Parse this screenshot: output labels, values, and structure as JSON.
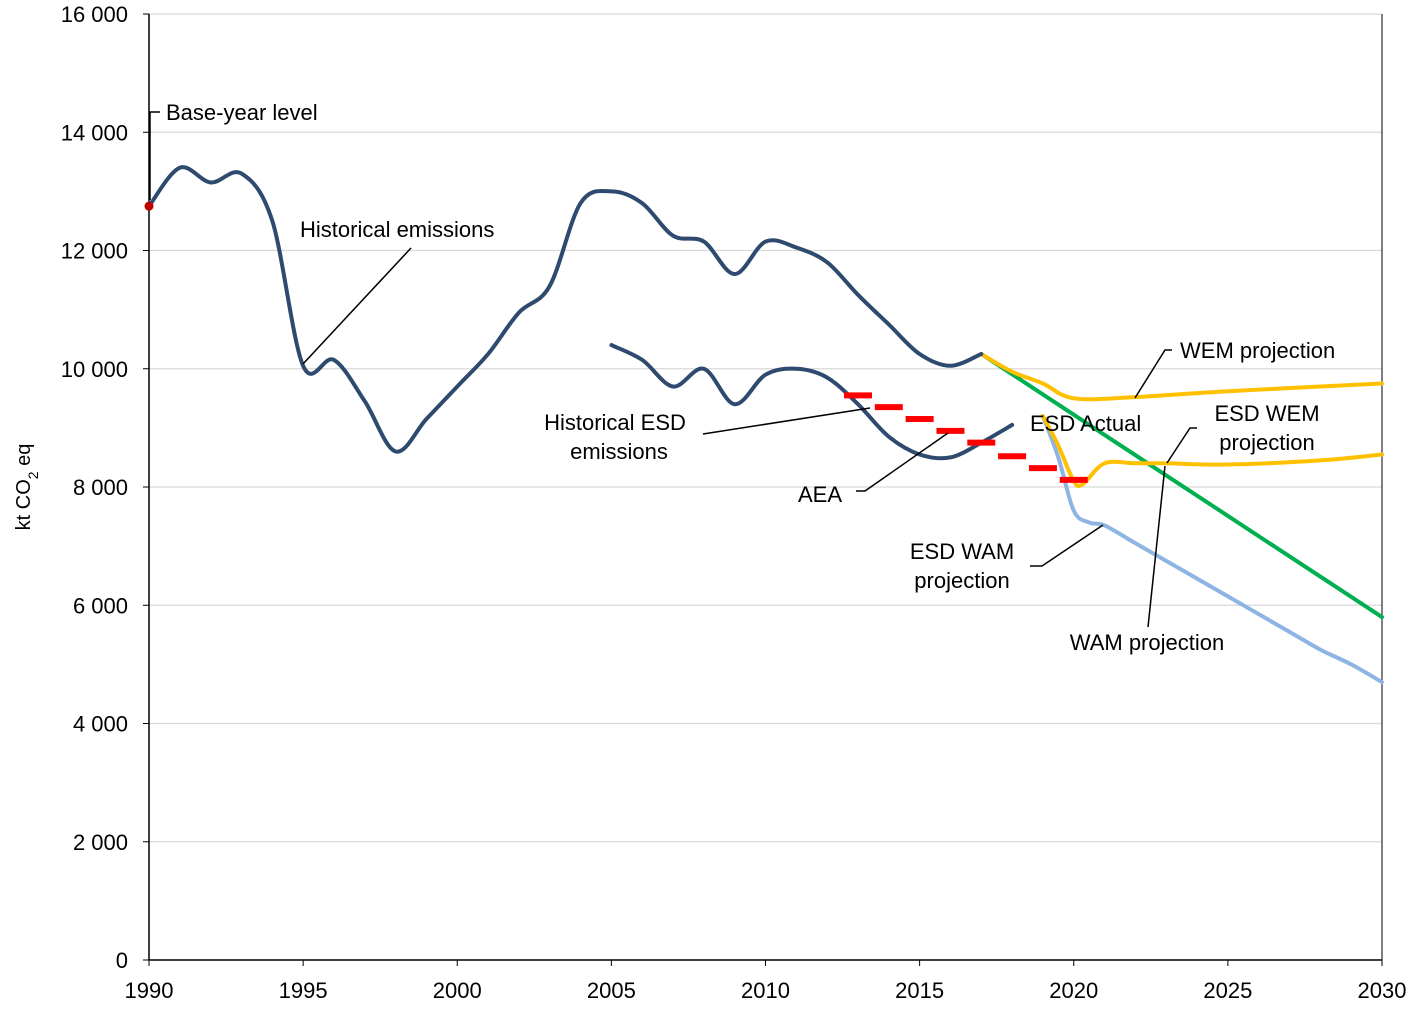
{
  "chart_data": {
    "type": "line",
    "title": "",
    "xlabel": "",
    "ylabel": "kt CO₂ eq",
    "xlim": [
      1990,
      2030
    ],
    "ylim": [
      0,
      16000
    ],
    "x_ticks": [
      "1990",
      "1995",
      "2000",
      "2005",
      "2010",
      "2015",
      "2020",
      "2025",
      "2030"
    ],
    "y_ticks": [
      "0",
      "2 000",
      "4 000",
      "6 000",
      "8 000",
      "10 000",
      "12 000",
      "14 000",
      "16 000"
    ],
    "grid": "horizontal",
    "colors": {
      "historical": "#2e4a6f",
      "wem": "#ffc000",
      "wam": "#8db4e2",
      "esd_actual": "#00b050",
      "aea": "#ff0000",
      "base_year_marker": "#c00000"
    },
    "series": [
      {
        "key": "historical",
        "x": [
          1990,
          1991,
          1992,
          1993,
          1994,
          1995,
          1996,
          1997,
          1998,
          1999,
          2000,
          2001,
          2002,
          2003,
          2004,
          2005,
          2006,
          2007,
          2008,
          2009,
          2010,
          2011,
          2012,
          2013,
          2014,
          2015,
          2016,
          2017
        ],
        "values": [
          12750,
          13400,
          13150,
          13300,
          12500,
          10050,
          10150,
          9450,
          8600,
          9150,
          9700,
          10250,
          10950,
          11400,
          12800,
          13000,
          12800,
          12250,
          12150,
          11600,
          12150,
          12050,
          11800,
          11250,
          10750,
          10250,
          10050,
          10250
        ]
      },
      {
        "key": "historical_esd",
        "x": [
          2005,
          2006,
          2007,
          2008,
          2009,
          2010,
          2011,
          2012,
          2013,
          2014,
          2015,
          2016,
          2017,
          2018
        ],
        "values": [
          10400,
          10150,
          9700,
          10000,
          9400,
          9900,
          10000,
          9850,
          9400,
          8850,
          8550,
          8500,
          8750,
          9050
        ]
      },
      {
        "key": "wem",
        "x": [
          2017,
          2018,
          2019,
          2020,
          2022,
          2025,
          2030
        ],
        "values": [
          10250,
          9950,
          9750,
          9500,
          9520,
          9620,
          9750
        ]
      },
      {
        "key": "esd_wem",
        "x": [
          2019,
          2019.5,
          2020,
          2020.3,
          2021,
          2022,
          2023,
          2025,
          2028,
          2030
        ],
        "values": [
          9200,
          8700,
          8100,
          8050,
          8400,
          8400,
          8400,
          8380,
          8450,
          8550
        ]
      },
      {
        "key": "esd_wam",
        "x": [
          2019,
          2019.5,
          2020,
          2020.5,
          2021,
          2022,
          2023,
          2025,
          2026,
          2027,
          2028,
          2029,
          2030
        ],
        "values": [
          9200,
          8500,
          7600,
          7400,
          7350,
          7050,
          6750,
          6150,
          5850,
          5550,
          5250,
          5000,
          4700
        ]
      },
      {
        "key": "esd_actual",
        "x": [
          2017,
          2030
        ],
        "values": [
          10250,
          5800
        ]
      }
    ],
    "aea": {
      "x": [
        2013,
        2014,
        2015,
        2016,
        2017,
        2018,
        2019,
        2020
      ],
      "values": [
        9550,
        9350,
        9150,
        8950,
        8750,
        8520,
        8320,
        8120
      ]
    },
    "base_year": {
      "x": 1990,
      "value": 12750,
      "label": "Base-year level"
    },
    "annotations": {
      "base_year": "Base-year level",
      "historical": "Historical emissions",
      "historical_esd_line1": "Historical ESD",
      "historical_esd_line2": "emissions",
      "aea": "AEA",
      "esd_actual": "ESD Actual",
      "wem": "WEM projection",
      "esd_wem_line1": "ESD WEM",
      "esd_wem_line2": "projection",
      "esd_wam_line1": "ESD WAM",
      "esd_wam_line2": "projection",
      "wam": "WAM projection"
    }
  }
}
